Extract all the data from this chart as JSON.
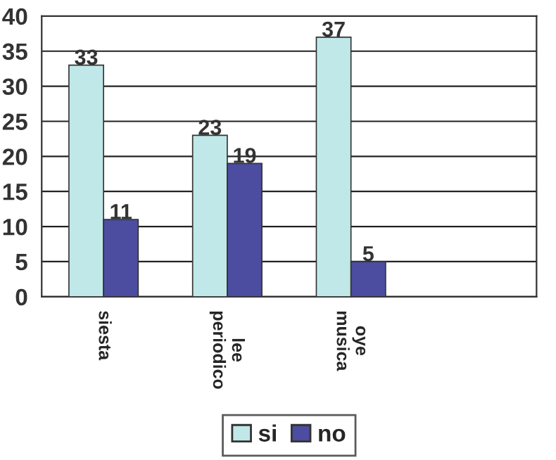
{
  "chart_data": {
    "type": "bar",
    "categories": [
      "siesta",
      "lee\nperiodico",
      "oye\nmusica",
      null
    ],
    "series": [
      {
        "name": "si",
        "color": "#c0e8e8",
        "values": [
          33,
          23,
          37,
          null
        ]
      },
      {
        "name": "no",
        "color": "#4c4ca0",
        "values": [
          11,
          19,
          5,
          null
        ]
      }
    ],
    "ylim": [
      0,
      40
    ],
    "yticks": [
      0,
      5,
      10,
      15,
      20,
      25,
      30,
      35,
      40
    ],
    "grid": "y",
    "legend": "bottom",
    "data_labels": true
  }
}
